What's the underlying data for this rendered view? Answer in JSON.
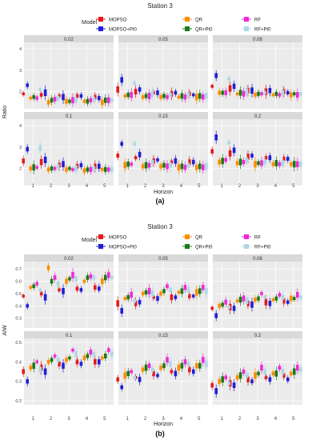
{
  "colors": {
    "MOPSO": "#e41a1c",
    "MOPSO+Pt0": "#1f1fd6",
    "QR": "#ff8c00",
    "QR+Pt0": "#1b7a1b",
    "RF": "#ee2bd8",
    "RF+Pt0": "#add8e6",
    "panel_bg": "#ebebeb",
    "strip_bg": "#d9d9d9",
    "grid": "#ffffff"
  },
  "chart_data": [
    {
      "type": "box",
      "title": "Station 3",
      "caption": "(a)",
      "legend_title": "Model",
      "legend_position": "top",
      "series_names": [
        "MOPSO",
        "QR",
        "RF",
        "MOPSO+Pt0",
        "QR+Pt0",
        "RF+Pt0"
      ],
      "xlabel": "Horizon",
      "ylabel": "Ratio",
      "x_ticks": [
        "1",
        "2",
        "3",
        "4",
        "5"
      ],
      "facet_rows": 2,
      "facet_cols": 3,
      "ylim_top": [
        1.2,
        4.3
      ],
      "ylim_bottom": [
        1.2,
        4.3
      ],
      "y_ticks": [
        2,
        3,
        4
      ],
      "grid": true,
      "facets": [
        {
          "label": "0.02",
          "series": {
            "MOPSO": [
              1.9,
              1.85,
              1.8,
              1.8,
              1.75
            ],
            "MOPSO+Pt0": [
              2.3,
              1.95,
              1.75,
              1.8,
              1.7
            ],
            "QR": [
              1.7,
              1.5,
              1.55,
              1.55,
              1.5
            ],
            "QR+Pt0": [
              1.75,
              1.6,
              1.55,
              1.55,
              1.6
            ],
            "RF": [
              1.7,
              1.65,
              1.6,
              1.6,
              1.6
            ],
            "RF+Pt0": [
              2.1,
              1.7,
              1.6,
              1.65,
              1.6
            ]
          }
        },
        {
          "label": "0.05",
          "series": {
            "MOPSO": [
              2.1,
              2.0,
              1.95,
              1.9,
              1.9
            ],
            "MOPSO+Pt0": [
              2.55,
              2.1,
              1.95,
              1.95,
              1.85
            ],
            "QR": [
              1.8,
              1.75,
              1.75,
              1.75,
              1.75
            ],
            "QR+Pt0": [
              1.85,
              1.8,
              1.8,
              1.8,
              1.8
            ],
            "RF": [
              1.85,
              1.8,
              1.75,
              1.75,
              1.75
            ],
            "RF+Pt0": [
              2.4,
              1.9,
              1.85,
              1.85,
              1.8
            ]
          }
        },
        {
          "label": "0.08",
          "series": {
            "MOPSO": [
              2.25,
              2.15,
              2.05,
              2.0,
              2.0
            ],
            "MOPSO+Pt0": [
              2.75,
              2.25,
              2.05,
              2.05,
              1.95
            ],
            "QR": [
              1.95,
              1.9,
              1.85,
              1.85,
              1.85
            ],
            "QR+Pt0": [
              1.95,
              1.95,
              1.9,
              1.9,
              1.9
            ],
            "RF": [
              1.95,
              1.9,
              1.9,
              1.85,
              1.85
            ],
            "RF+Pt0": [
              2.6,
              2.0,
              1.95,
              1.95,
              1.9
            ]
          }
        },
        {
          "label": "0.1",
          "series": {
            "MOPSO": [
              2.35,
              2.3,
              2.15,
              2.1,
              2.1
            ],
            "MOPSO+Pt0": [
              2.9,
              2.4,
              2.2,
              2.15,
              2.1
            ],
            "QR": [
              2.0,
              1.95,
              1.95,
              1.9,
              1.95
            ],
            "QR+Pt0": [
              2.05,
              2.0,
              2.0,
              1.95,
              1.95
            ],
            "RF": [
              2.05,
              2.0,
              1.95,
              1.95,
              1.95
            ],
            "RF+Pt0": [
              2.95,
              2.1,
              2.0,
              2.0,
              1.95
            ]
          }
        },
        {
          "label": "0.15",
          "series": {
            "MOPSO": [
              2.6,
              2.5,
              2.35,
              2.3,
              2.3
            ],
            "MOPSO+Pt0": [
              3.15,
              2.65,
              2.4,
              2.35,
              2.3
            ],
            "QR": [
              2.15,
              2.1,
              2.1,
              2.05,
              2.05
            ],
            "QR+Pt0": [
              2.2,
              2.15,
              2.15,
              2.1,
              2.1
            ],
            "RF": [
              2.2,
              2.15,
              2.1,
              2.05,
              2.05
            ],
            "RF+Pt0": [
              3.15,
              2.3,
              2.15,
              2.15,
              2.1
            ]
          }
        },
        {
          "label": "0.2",
          "series": {
            "MOPSO": [
              2.8,
              2.7,
              2.55,
              2.5,
              2.45
            ],
            "MOPSO+Pt0": [
              3.45,
              2.85,
              2.6,
              2.5,
              2.45
            ],
            "QR": [
              2.3,
              2.25,
              2.2,
              2.2,
              2.2
            ],
            "QR+Pt0": [
              2.35,
              2.3,
              2.25,
              2.25,
              2.2
            ],
            "RF": [
              2.4,
              2.3,
              2.25,
              2.2,
              2.2
            ],
            "RF+Pt0": [
              3.2,
              2.4,
              2.3,
              2.25,
              2.2
            ]
          }
        }
      ]
    },
    {
      "type": "box",
      "title": "Station 3",
      "caption": "(b)",
      "legend_title": "Model",
      "legend_position": "top",
      "series_names": [
        "MOPSO",
        "QR",
        "RF",
        "MOPSO+Pt0",
        "QR+Pt0",
        "RF+Pt0"
      ],
      "xlabel": "Horizon",
      "ylabel": "AIW",
      "x_ticks": [
        "1",
        "2",
        "3",
        "4",
        "5"
      ],
      "facet_rows": 2,
      "facet_cols": 3,
      "ylim_top": [
        0.22,
        0.76
      ],
      "ylim_bottom": [
        0.18,
        0.52
      ],
      "y_ticks_top": [
        0.3,
        0.4,
        0.5,
        0.6,
        0.7
      ],
      "y_ticks_bottom": [
        0.2,
        0.3,
        0.4,
        0.5
      ],
      "grid": true,
      "facets": [
        {
          "label": "0.02",
          "series": {
            "MOPSO": [
              0.48,
              0.5,
              0.53,
              0.54,
              0.55
            ],
            "MOPSO+Pt0": [
              0.4,
              0.47,
              0.52,
              0.53,
              0.54
            ],
            "QR": [
              0.55,
              0.71,
              0.6,
              0.6,
              0.6
            ],
            "QR+Pt0": [
              0.56,
              0.6,
              0.62,
              0.63,
              0.63
            ],
            "RF": [
              0.58,
              0.63,
              0.65,
              0.64,
              0.65
            ],
            "RF+Pt0": [
              0.53,
              0.58,
              0.62,
              0.63,
              0.63
            ]
          }
        },
        {
          "label": "0.05",
          "series": {
            "MOPSO": [
              0.42,
              0.42,
              0.47,
              0.47,
              0.48
            ],
            "MOPSO+Pt0": [
              0.36,
              0.43,
              0.46,
              0.47,
              0.48
            ],
            "QR": [
              0.46,
              0.5,
              0.5,
              0.51,
              0.51
            ],
            "QR+Pt0": [
              0.47,
              0.51,
              0.52,
              0.52,
              0.52
            ],
            "RF": [
              0.49,
              0.52,
              0.56,
              0.55,
              0.55
            ],
            "RF+Pt0": [
              0.44,
              0.5,
              0.53,
              0.53,
              0.52
            ]
          }
        },
        {
          "label": "0.08",
          "series": {
            "MOPSO": [
              0.38,
              0.39,
              0.42,
              0.43,
              0.44
            ],
            "MOPSO+Pt0": [
              0.32,
              0.38,
              0.41,
              0.42,
              0.43
            ],
            "QR": [
              0.4,
              0.44,
              0.45,
              0.45,
              0.46
            ],
            "QR+Pt0": [
              0.41,
              0.45,
              0.46,
              0.46,
              0.46
            ],
            "RF": [
              0.43,
              0.46,
              0.5,
              0.49,
              0.49
            ],
            "RF+Pt0": [
              0.39,
              0.44,
              0.47,
              0.47,
              0.47
            ]
          }
        },
        {
          "label": "0.1",
          "series": {
            "MOPSO": [
              0.35,
              0.37,
              0.39,
              0.4,
              0.4
            ],
            "MOPSO+Pt0": [
              0.3,
              0.35,
              0.38,
              0.39,
              0.4
            ],
            "QR": [
              0.37,
              0.4,
              0.41,
              0.42,
              0.42
            ],
            "QR+Pt0": [
              0.38,
              0.41,
              0.42,
              0.43,
              0.43
            ],
            "RF": [
              0.4,
              0.43,
              0.46,
              0.45,
              0.46
            ],
            "RF+Pt0": [
              0.36,
              0.41,
              0.44,
              0.44,
              0.44
            ]
          }
        },
        {
          "label": "0.15",
          "series": {
            "MOPSO": [
              0.31,
              0.32,
              0.34,
              0.35,
              0.36
            ],
            "MOPSO+Pt0": [
              0.27,
              0.31,
              0.33,
              0.34,
              0.35
            ],
            "QR": [
              0.33,
              0.36,
              0.37,
              0.37,
              0.38
            ],
            "QR+Pt0": [
              0.34,
              0.37,
              0.38,
              0.38,
              0.38
            ],
            "RF": [
              0.35,
              0.38,
              0.41,
              0.4,
              0.41
            ],
            "RF+Pt0": [
              0.32,
              0.36,
              0.39,
              0.39,
              0.39
            ]
          }
        },
        {
          "label": "0.2",
          "series": {
            "MOPSO": [
              0.28,
              0.29,
              0.31,
              0.32,
              0.33
            ],
            "MOPSO+Pt0": [
              0.25,
              0.28,
              0.3,
              0.31,
              0.31
            ],
            "QR": [
              0.3,
              0.32,
              0.33,
              0.34,
              0.34
            ],
            "QR+Pt0": [
              0.31,
              0.33,
              0.34,
              0.34,
              0.35
            ],
            "RF": [
              0.32,
              0.35,
              0.37,
              0.37,
              0.37
            ],
            "RF+Pt0": [
              0.29,
              0.33,
              0.35,
              0.35,
              0.36
            ]
          }
        }
      ]
    }
  ]
}
